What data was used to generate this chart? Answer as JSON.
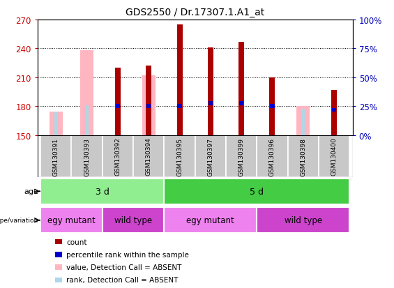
{
  "title": "GDS2550 / Dr.17307.1.A1_at",
  "samples": [
    "GSM130391",
    "GSM130393",
    "GSM130392",
    "GSM130394",
    "GSM130395",
    "GSM130397",
    "GSM130399",
    "GSM130396",
    "GSM130398",
    "GSM130400"
  ],
  "count_values": [
    null,
    null,
    220,
    222,
    265,
    241,
    247,
    210,
    null,
    197
  ],
  "rank_values": [
    null,
    null,
    180,
    180,
    180,
    183,
    183,
    180,
    null,
    176
  ],
  "absent_value_values": [
    174,
    238,
    null,
    212,
    null,
    null,
    null,
    null,
    180,
    null
  ],
  "absent_rank_values": [
    174,
    181,
    null,
    178,
    null,
    null,
    null,
    null,
    177,
    175
  ],
  "ylim": [
    150,
    270
  ],
  "yticks": [
    150,
    180,
    210,
    240,
    270
  ],
  "right_yticks_pct": [
    0,
    25,
    50,
    75,
    100
  ],
  "age_groups": [
    {
      "label": "3 d",
      "start": 0,
      "end": 4
    },
    {
      "label": "5 d",
      "start": 4,
      "end": 10
    }
  ],
  "genotype_groups": [
    {
      "label": "egy mutant",
      "start": 0,
      "end": 2,
      "color": "#EE82EE"
    },
    {
      "label": "wild type",
      "start": 2,
      "end": 4,
      "color": "#CC44CC"
    },
    {
      "label": "egy mutant",
      "start": 4,
      "end": 7,
      "color": "#EE82EE"
    },
    {
      "label": "wild type",
      "start": 7,
      "end": 10,
      "color": "#CC44CC"
    }
  ],
  "age_color": "#90EE90",
  "age_color2": "#44CC44",
  "genotype_color_light": "#EE82EE",
  "genotype_color_dark": "#CC44CC",
  "bar_color_count": "#AA0000",
  "bar_color_absent_value": "#FFB6C1",
  "bar_color_absent_rank": "#ADD8E6",
  "rank_color": "#0000CC",
  "left_axis_color": "#CC0000",
  "right_axis_color": "#0000BB",
  "legend_items": [
    {
      "color": "#AA0000",
      "label": "count"
    },
    {
      "color": "#0000CC",
      "label": "percentile rank within the sample"
    },
    {
      "color": "#FFB6C1",
      "label": "value, Detection Call = ABSENT"
    },
    {
      "color": "#ADD8E6",
      "label": "rank, Detection Call = ABSENT"
    }
  ]
}
